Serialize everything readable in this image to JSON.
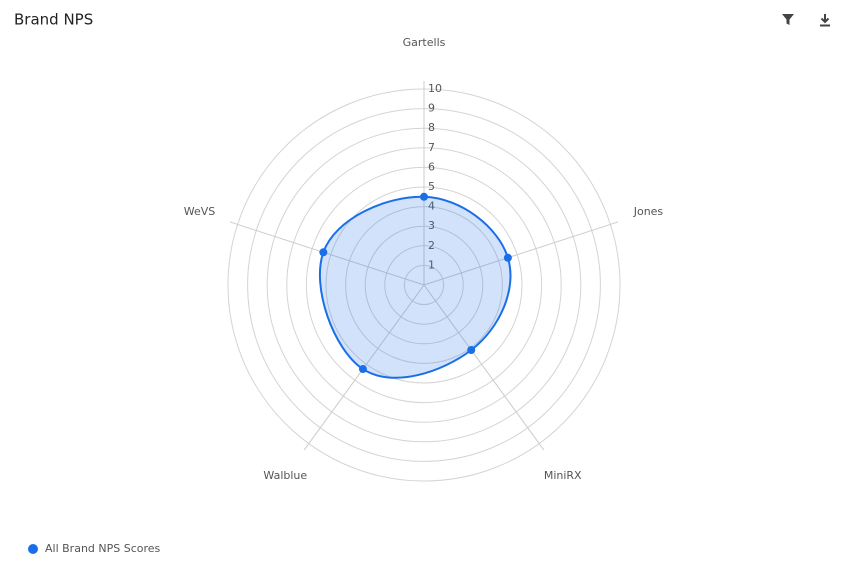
{
  "chart_data": {
    "type": "radar",
    "title": "Brand NPS",
    "categories": [
      "Gartells",
      "Jones",
      "MiniRX",
      "Walblue",
      "WeVS"
    ],
    "series": [
      {
        "name": "All Brand NPS Scores",
        "color": "#1a6fe8",
        "values": [
          4.5,
          4.5,
          4.1,
          5.3,
          5.4
        ]
      }
    ],
    "rlim": [
      0,
      10
    ],
    "rticks": [
      1,
      2,
      3,
      4,
      5,
      6,
      7,
      8,
      9,
      10
    ],
    "grid": true,
    "legend": "bottom-left"
  }
}
